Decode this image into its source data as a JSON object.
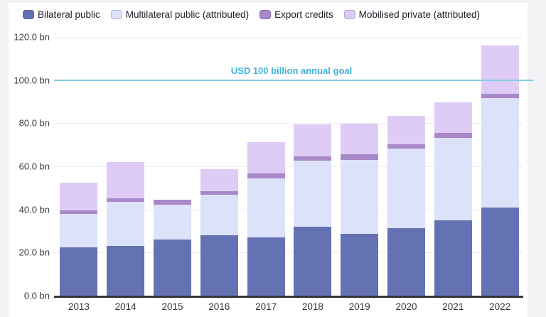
{
  "page": {
    "background_color": "#f2f2f5",
    "card_color": "#ffffff"
  },
  "legend": {
    "items": [
      {
        "label": "Bilateral public",
        "color": "#6471B2"
      },
      {
        "label": "Multilateral public (attributed)",
        "color": "#DCE2F9"
      },
      {
        "label": "Export credits",
        "color": "#A888C8"
      },
      {
        "label": "Mobilised private (attributed)",
        "color": "#DECCF6"
      }
    ]
  },
  "goal": {
    "label": "USD 100 billion annual goal",
    "value": 100,
    "line_color": "#85CBE6",
    "text_color": "#3FB3DE"
  },
  "y_axis": {
    "ticks": [
      {
        "label": "0.0 bn",
        "value": 0
      },
      {
        "label": "20.0 bn",
        "value": 20
      },
      {
        "label": "40.0 bn",
        "value": 40
      },
      {
        "label": "60.0 bn",
        "value": 60
      },
      {
        "label": "80.0 bn",
        "value": 80
      },
      {
        "label": "100.0 bn",
        "value": 100
      },
      {
        "label": "120.0 bn",
        "value": 120
      }
    ]
  },
  "chart_data": {
    "type": "bar",
    "stacked": true,
    "title": "",
    "xlabel": "",
    "ylabel": "",
    "ylim": [
      0,
      120
    ],
    "y_tick_step": 20,
    "unit": "bn",
    "grid": true,
    "legend_position": "top",
    "annotation": "USD 100 billion annual goal",
    "annotation_value": 100,
    "categories": [
      "2013",
      "2014",
      "2015",
      "2016",
      "2017",
      "2018",
      "2019",
      "2020",
      "2021",
      "2022"
    ],
    "series": [
      {
        "name": "Bilateral public",
        "color": "#6471B2",
        "values": [
          22.5,
          23.1,
          25.9,
          28.0,
          27.0,
          32.0,
          28.8,
          31.4,
          34.9,
          41.0
        ]
      },
      {
        "name": "Multilateral public (attributed)",
        "color": "#DCE2F9",
        "values": [
          15.5,
          20.4,
          16.2,
          18.9,
          27.5,
          30.5,
          34.1,
          36.9,
          38.2,
          50.6
        ]
      },
      {
        "name": "Export credits",
        "color": "#A888C8",
        "values": [
          1.6,
          1.6,
          2.5,
          1.5,
          2.1,
          2.1,
          2.6,
          1.9,
          2.4,
          2.0
        ]
      },
      {
        "name": "Mobilised private (attributed)",
        "color": "#DECCF6",
        "values": [
          12.8,
          16.7,
          0,
          10.1,
          14.5,
          14.9,
          14.4,
          13.1,
          14.1,
          22.3
        ]
      }
    ],
    "totals": [
      52.4,
      61.8,
      44.6,
      58.5,
      71.1,
      79.5,
      79.9,
      83.3,
      89.6,
      115.9
    ]
  }
}
